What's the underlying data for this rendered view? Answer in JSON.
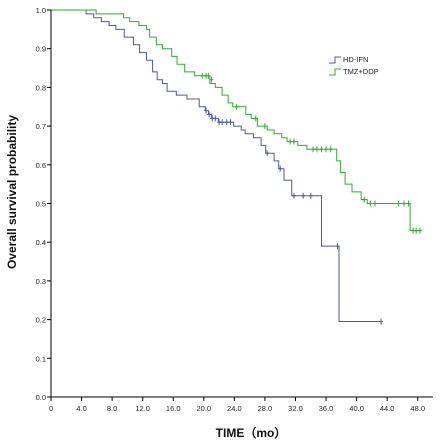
{
  "chart_data": {
    "type": "line",
    "title": "",
    "xlabel": "TIME（mo）",
    "ylabel": "Overall survival probability",
    "xlim": [
      0,
      50
    ],
    "ylim": [
      0,
      1
    ],
    "x_ticks": [
      "0",
      "4.0",
      "8.0",
      "12.0",
      "16.0",
      "20.0",
      "24.0",
      "28.0",
      "32.0",
      "36.0",
      "40.0",
      "44.0",
      "48.0"
    ],
    "y_ticks": [
      "0.0",
      "0.1",
      "0.2",
      "0.3",
      "0.4",
      "0.5",
      "0.6",
      "0.7",
      "0.8",
      "0.9",
      "1.0"
    ],
    "legend_position": "top-right",
    "grid": false,
    "series": [
      {
        "name": "HD-IFN",
        "color": "#4b5a9f",
        "steps": [
          [
            0,
            1.0
          ],
          [
            4.6,
            0.99
          ],
          [
            5.6,
            0.98
          ],
          [
            6.6,
            0.97
          ],
          [
            7.6,
            0.96
          ],
          [
            8.5,
            0.95
          ],
          [
            9.6,
            0.93
          ],
          [
            10.8,
            0.91
          ],
          [
            11.6,
            0.89
          ],
          [
            12.5,
            0.87
          ],
          [
            13.3,
            0.84
          ],
          [
            13.9,
            0.82
          ],
          [
            14.6,
            0.81
          ],
          [
            15.2,
            0.79
          ],
          [
            16.4,
            0.78
          ],
          [
            17.8,
            0.77
          ],
          [
            19.4,
            0.75
          ],
          [
            20.2,
            0.74
          ],
          [
            20.6,
            0.73
          ],
          [
            21.0,
            0.72
          ],
          [
            21.9,
            0.71
          ],
          [
            23.9,
            0.7
          ],
          [
            24.9,
            0.69
          ],
          [
            25.4,
            0.68
          ],
          [
            26.5,
            0.67
          ],
          [
            27.5,
            0.65
          ],
          [
            28.1,
            0.63
          ],
          [
            29.2,
            0.61
          ],
          [
            29.8,
            0.59
          ],
          [
            30.5,
            0.56
          ],
          [
            31.5,
            0.52
          ],
          [
            35.4,
            0.39
          ],
          [
            37.7,
            0.195
          ],
          [
            43.2,
            0.195
          ]
        ],
        "censored": [
          [
            20.3,
            0.74
          ],
          [
            20.7,
            0.73
          ],
          [
            21.1,
            0.72
          ],
          [
            21.5,
            0.72
          ],
          [
            22.0,
            0.71
          ],
          [
            22.4,
            0.71
          ],
          [
            23.0,
            0.71
          ],
          [
            23.5,
            0.71
          ],
          [
            28.3,
            0.63
          ],
          [
            30.0,
            0.59
          ],
          [
            31.8,
            0.52
          ],
          [
            33.0,
            0.52
          ],
          [
            34.0,
            0.52
          ],
          [
            37.5,
            0.39
          ],
          [
            43.2,
            0.195
          ]
        ]
      },
      {
        "name": "TMZ+DDP",
        "color": "#33aa33",
        "steps": [
          [
            0,
            1.0
          ],
          [
            5.9,
            0.99
          ],
          [
            9.5,
            0.98
          ],
          [
            10.3,
            0.97
          ],
          [
            11.5,
            0.96
          ],
          [
            12.5,
            0.95
          ],
          [
            12.9,
            0.93
          ],
          [
            13.8,
            0.91
          ],
          [
            14.6,
            0.9
          ],
          [
            15.8,
            0.88
          ],
          [
            16.5,
            0.86
          ],
          [
            17.5,
            0.84
          ],
          [
            18.8,
            0.83
          ],
          [
            20.8,
            0.81
          ],
          [
            21.5,
            0.8
          ],
          [
            22.4,
            0.78
          ],
          [
            23.2,
            0.76
          ],
          [
            23.8,
            0.75
          ],
          [
            25.5,
            0.73
          ],
          [
            26.2,
            0.72
          ],
          [
            27.0,
            0.7
          ],
          [
            28.3,
            0.69
          ],
          [
            29.2,
            0.68
          ],
          [
            30.2,
            0.67
          ],
          [
            30.9,
            0.66
          ],
          [
            32.3,
            0.65
          ],
          [
            33.5,
            0.64
          ],
          [
            37.4,
            0.61
          ],
          [
            37.9,
            0.58
          ],
          [
            38.5,
            0.55
          ],
          [
            39.4,
            0.53
          ],
          [
            40.6,
            0.51
          ],
          [
            41.4,
            0.5
          ],
          [
            47.0,
            0.43
          ],
          [
            48.2,
            0.43
          ]
        ],
        "censored": [
          [
            19.8,
            0.83
          ],
          [
            20.3,
            0.83
          ],
          [
            20.6,
            0.83
          ],
          [
            21.0,
            0.82
          ],
          [
            24.3,
            0.75
          ],
          [
            26.8,
            0.72
          ],
          [
            28.0,
            0.7
          ],
          [
            31.3,
            0.66
          ],
          [
            31.8,
            0.66
          ],
          [
            34.3,
            0.64
          ],
          [
            34.8,
            0.64
          ],
          [
            35.4,
            0.64
          ],
          [
            36.0,
            0.64
          ],
          [
            36.6,
            0.64
          ],
          [
            41.0,
            0.51
          ],
          [
            41.8,
            0.5
          ],
          [
            42.4,
            0.5
          ],
          [
            45.5,
            0.5
          ],
          [
            46.2,
            0.5
          ],
          [
            46.8,
            0.5
          ],
          [
            47.4,
            0.43
          ],
          [
            47.8,
            0.43
          ],
          [
            48.3,
            0.43
          ]
        ]
      }
    ]
  }
}
